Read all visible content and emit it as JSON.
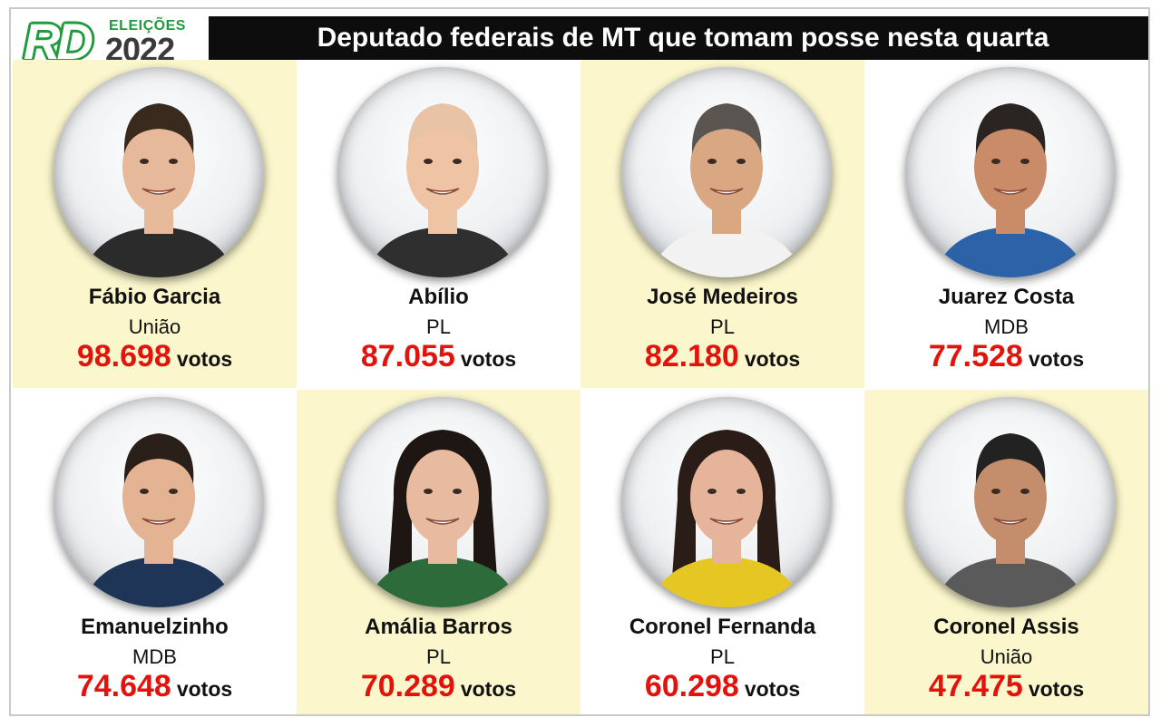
{
  "header": {
    "logo_text": "RD",
    "logo_subtitle": "ELEIÇÕES",
    "logo_year": "2022",
    "title": "Deputado federais de MT que tomam posse nesta quarta"
  },
  "votes_label": "votos",
  "colors": {
    "accent_red": "#e3120b",
    "title_bg": "#0d0d0d",
    "cell_yellow": "#fbf6cc",
    "logo_green": "#1f9a3c"
  },
  "candidates": [
    {
      "name": "Fábio Garcia",
      "party": "União",
      "votes": "98.698",
      "photo": "portrait-man-dark-hair",
      "hair": "#3a2a1e",
      "skin": "#e6b99a",
      "shirt": "#2b2b2b"
    },
    {
      "name": "Abílio",
      "party": "PL",
      "votes": "87.055",
      "photo": "portrait-man-bald",
      "hair": "#e8c3a6",
      "skin": "#efc4a5",
      "shirt": "#2f2f2f"
    },
    {
      "name": "José Medeiros",
      "party": "PL",
      "votes": "82.180",
      "photo": "portrait-man-grey-hair",
      "hair": "#5a5551",
      "skin": "#d9a883",
      "shirt": "#f2f2f2"
    },
    {
      "name": "Juarez Costa",
      "party": "MDB",
      "votes": "77.528",
      "photo": "portrait-man-short-hair",
      "hair": "#2a2522",
      "skin": "#c98b68",
      "shirt": "#2c63a8"
    },
    {
      "name": "Emanuelzinho",
      "party": "MDB",
      "votes": "74.648",
      "photo": "portrait-man-beard",
      "hair": "#2b2019",
      "skin": "#e3b394",
      "shirt": "#1f3558"
    },
    {
      "name": "Amália Barros",
      "party": "PL",
      "votes": "70.289",
      "photo": "portrait-woman-long-hair",
      "hair": "#1d1612",
      "skin": "#e8bba0",
      "shirt": "#2e6b3a"
    },
    {
      "name": "Coronel Fernanda",
      "party": "PL",
      "votes": "60.298",
      "photo": "portrait-woman-dark-hair",
      "hair": "#2a1d17",
      "skin": "#e6b49b",
      "shirt": "#e5c623"
    },
    {
      "name": "Coronel Assis",
      "party": "União",
      "votes": "47.475",
      "photo": "portrait-man-serious",
      "hair": "#222222",
      "skin": "#c48d6c",
      "shirt": "#5a5a5a"
    }
  ]
}
